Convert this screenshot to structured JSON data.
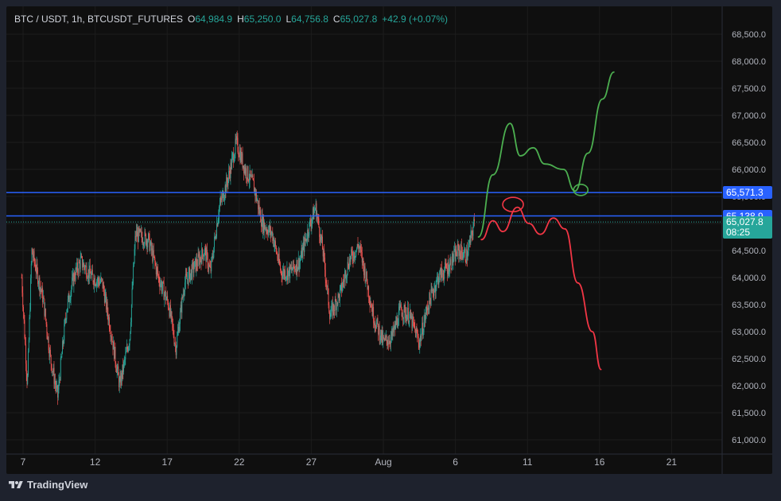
{
  "header": {
    "symbol": "BTC / USDT, 1h, BTCUSDT_FUTURES",
    "open_label": "O",
    "open": "64,984.9",
    "high_label": "H",
    "high": "65,250.0",
    "low_label": "L",
    "low": "64,756.8",
    "close_label": "C",
    "close": "65,027.8",
    "change": "+42.9 (+0.07%)"
  },
  "price_tags": {
    "level1": "65,571.3",
    "level2": "65,138.9",
    "current": "65,027.8",
    "countdown": "08:25"
  },
  "footer": {
    "brand": "TradingView"
  },
  "colors": {
    "up": "#26a69a",
    "down": "#ef5350",
    "level_line": "#2962ff",
    "bull_path": "#4caf50",
    "bear_path": "#f23645",
    "current_tag": "#26a69a"
  },
  "icons": {
    "logo": "tradingview-logo-icon"
  },
  "chart_data": {
    "type": "candlestick",
    "title": "",
    "ylim": [
      60800,
      68800
    ],
    "y_ticks": [
      "68,500.0",
      "68,000.0",
      "67,500.0",
      "67,000.0",
      "66,500.0",
      "66,000.0",
      "65,500.0",
      "65,000.0",
      "64,500.0",
      "64,000.0",
      "63,500.0",
      "63,000.0",
      "62,500.0",
      "62,000.0",
      "61,500.0",
      "61,000.0"
    ],
    "x_ticks": [
      {
        "label": "7",
        "day": 7
      },
      {
        "label": "12",
        "day": 12
      },
      {
        "label": "17",
        "day": 17
      },
      {
        "label": "22",
        "day": 22
      },
      {
        "label": "27",
        "day": 27
      },
      {
        "label": "Aug",
        "day": 32
      },
      {
        "label": "6",
        "day": 37
      },
      {
        "label": "11",
        "day": 42
      },
      {
        "label": "16",
        "day": 47
      },
      {
        "label": "21",
        "day": 52
      }
    ],
    "price_path_hourly_approx": [
      {
        "day": 6.9,
        "price": 64000
      },
      {
        "day": 7.3,
        "price": 62000
      },
      {
        "day": 7.6,
        "price": 64500
      },
      {
        "day": 8.4,
        "price": 63600
      },
      {
        "day": 8.9,
        "price": 62500
      },
      {
        "day": 9.4,
        "price": 61800
      },
      {
        "day": 10.0,
        "price": 63400
      },
      {
        "day": 10.5,
        "price": 64000
      },
      {
        "day": 11.0,
        "price": 64300
      },
      {
        "day": 11.8,
        "price": 64000
      },
      {
        "day": 12.5,
        "price": 63900
      },
      {
        "day": 13.1,
        "price": 63000
      },
      {
        "day": 13.7,
        "price": 62000
      },
      {
        "day": 14.4,
        "price": 62900
      },
      {
        "day": 14.8,
        "price": 64800
      },
      {
        "day": 15.7,
        "price": 64700
      },
      {
        "day": 16.4,
        "price": 64000
      },
      {
        "day": 17.1,
        "price": 63500
      },
      {
        "day": 17.6,
        "price": 62700
      },
      {
        "day": 18.2,
        "price": 63900
      },
      {
        "day": 18.9,
        "price": 64200
      },
      {
        "day": 19.6,
        "price": 64500
      },
      {
        "day": 20.0,
        "price": 64100
      },
      {
        "day": 20.6,
        "price": 65300
      },
      {
        "day": 21.2,
        "price": 65800
      },
      {
        "day": 21.8,
        "price": 66500
      },
      {
        "day": 22.4,
        "price": 66000
      },
      {
        "day": 23.0,
        "price": 65700
      },
      {
        "day": 23.6,
        "price": 65000
      },
      {
        "day": 24.3,
        "price": 64800
      },
      {
        "day": 24.9,
        "price": 64100
      },
      {
        "day": 25.5,
        "price": 64100
      },
      {
        "day": 26.2,
        "price": 64300
      },
      {
        "day": 26.8,
        "price": 64900
      },
      {
        "day": 27.3,
        "price": 65300
      },
      {
        "day": 27.8,
        "price": 64500
      },
      {
        "day": 28.3,
        "price": 63300
      },
      {
        "day": 29.0,
        "price": 63700
      },
      {
        "day": 29.6,
        "price": 64300
      },
      {
        "day": 30.3,
        "price": 64600
      },
      {
        "day": 30.8,
        "price": 64000
      },
      {
        "day": 31.3,
        "price": 63300
      },
      {
        "day": 32.0,
        "price": 62800
      },
      {
        "day": 32.6,
        "price": 62900
      },
      {
        "day": 33.2,
        "price": 63400
      },
      {
        "day": 33.8,
        "price": 63300
      },
      {
        "day": 34.5,
        "price": 62800
      },
      {
        "day": 35.1,
        "price": 63500
      },
      {
        "day": 35.8,
        "price": 64000
      },
      {
        "day": 36.5,
        "price": 64200
      },
      {
        "day": 37.2,
        "price": 64500
      },
      {
        "day": 37.8,
        "price": 64400
      },
      {
        "day": 38.3,
        "price": 65000
      }
    ],
    "levels": [
      {
        "label": "65,571.3",
        "price": 65571.3
      },
      {
        "label": "65,138.9",
        "price": 65138.9
      }
    ],
    "current_price": 65027.8,
    "projection_bull": [
      {
        "day": 38.6,
        "price": 64750
      },
      {
        "day": 39.6,
        "price": 65900
      },
      {
        "day": 40.8,
        "price": 66850
      },
      {
        "day": 41.5,
        "price": 66250
      },
      {
        "day": 42.4,
        "price": 66400
      },
      {
        "day": 43.2,
        "price": 66100
      },
      {
        "day": 44.5,
        "price": 66000
      },
      {
        "day": 45.3,
        "price": 65600
      },
      {
        "day": 46.2,
        "price": 66300
      },
      {
        "day": 47.2,
        "price": 67300
      },
      {
        "day": 48.0,
        "price": 67800
      }
    ],
    "projection_bear": [
      {
        "day": 38.8,
        "price": 64700
      },
      {
        "day": 39.6,
        "price": 65050
      },
      {
        "day": 40.3,
        "price": 64850
      },
      {
        "day": 41.3,
        "price": 65300
      },
      {
        "day": 42.1,
        "price": 65000
      },
      {
        "day": 42.9,
        "price": 64800
      },
      {
        "day": 43.8,
        "price": 65100
      },
      {
        "day": 44.6,
        "price": 64900
      },
      {
        "day": 45.5,
        "price": 63900
      },
      {
        "day": 46.5,
        "price": 63000
      },
      {
        "day": 47.1,
        "price": 62300
      }
    ],
    "markers": [
      {
        "kind": "ellipse",
        "color": "bear",
        "day": 41.0,
        "price": 65350
      },
      {
        "kind": "ellipse",
        "color": "bull",
        "day": 45.7,
        "price": 65620
      }
    ]
  }
}
